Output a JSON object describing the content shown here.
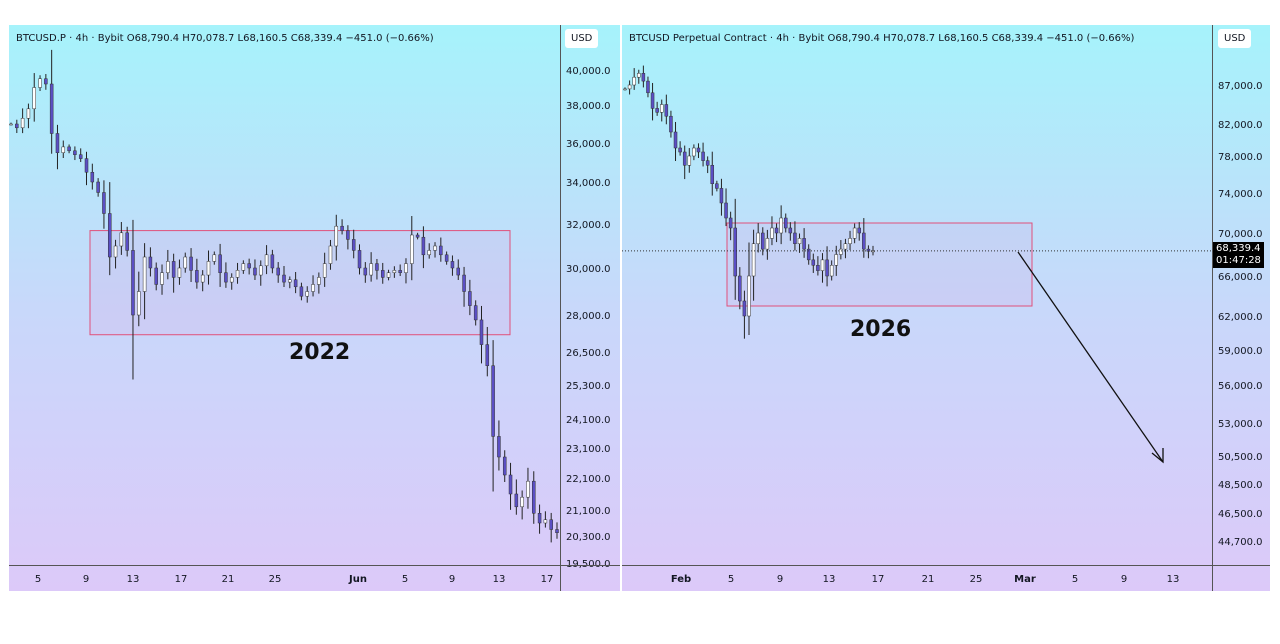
{
  "chart_data": [
    {
      "type": "candlestick",
      "panel": "left",
      "title": "BTCUSD.P · 4h · Bybit  O68,790.4  H70,078.7  L68,160.5  C68,339.4  −451.0 (−0.66%)",
      "currency": "USD",
      "annotation": "2022",
      "y_ticks": [
        40000,
        38000,
        36000,
        34000,
        32000,
        30000,
        28000,
        26500,
        25300,
        24100,
        23100,
        22100,
        21100,
        20300,
        19500
      ],
      "y_tick_labels": [
        "40,000.0",
        "38,000.0",
        "36,000.0",
        "34,000.0",
        "32,000.0",
        "30,000.0",
        "28,000.0",
        "26,500.0",
        "25,300.0",
        "24,100.0",
        "23,100.0",
        "22,100.0",
        "21,100.0",
        "20,300.0",
        "19,500.0"
      ],
      "x_tick_labels": [
        "5",
        "9",
        "13",
        "17",
        "21",
        "25",
        "Jun",
        "5",
        "9",
        "13",
        "17"
      ],
      "range_box": [
        27200,
        31700
      ],
      "closes": [
        37000,
        36800,
        37300,
        37800,
        39000,
        39500,
        39200,
        36500,
        35500,
        35800,
        35600,
        35400,
        35200,
        34500,
        34000,
        33500,
        32500,
        30500,
        31000,
        31600,
        30800,
        28000,
        29000,
        30500,
        30000,
        29300,
        29800,
        30300,
        29600,
        30000,
        30500,
        29900,
        29400,
        29700,
        30300,
        30600,
        29800,
        29400,
        29600,
        29900,
        30200,
        30000,
        29700,
        30100,
        30600,
        30000,
        29700,
        29400,
        29500,
        29200,
        28800,
        29000,
        29300,
        29600,
        30200,
        31000,
        31900,
        31700,
        31300,
        30800,
        30000,
        29700,
        30200,
        29900,
        29600,
        29800,
        29900,
        29800,
        30200,
        31500,
        31400,
        30600,
        30800,
        31000,
        30600,
        30300,
        30000,
        29700,
        29000,
        28400,
        27800,
        26800,
        26000,
        23500,
        22800,
        22200,
        21600,
        21200,
        21500,
        22000,
        21000,
        20700,
        20800,
        20500,
        20400
      ],
      "current_price": "68,339.4"
    },
    {
      "type": "candlestick",
      "panel": "right",
      "title": "BTCUSD Perpetual Contract · 4h · Bybit  O68,790.4  H70,078.7  L68,160.5  C68,339.4  −451.0 (−0.66%)",
      "currency": "USD",
      "annotation": "2026",
      "y_ticks": [
        87000,
        82000,
        78000,
        74000,
        70000,
        66000,
        62000,
        59000,
        56000,
        53000,
        50500,
        48500,
        46500,
        44700
      ],
      "y_tick_labels": [
        "87,000.0",
        "82,000.0",
        "78,000.0",
        "74,000.0",
        "70,000.0",
        "66,000.0",
        "62,000.0",
        "59,000.0",
        "56,000.0",
        "53,000.0",
        "50,500.0",
        "48,500.0",
        "46,500.0",
        "44,700.0"
      ],
      "x_tick_labels": [
        "Feb",
        "5",
        "9",
        "13",
        "17",
        "21",
        "25",
        "Mar",
        "5",
        "9",
        "13"
      ],
      "range_box": [
        63000,
        71000
      ],
      "closes": [
        86500,
        87000,
        88000,
        88500,
        87500,
        86000,
        84000,
        83500,
        84500,
        83000,
        81000,
        79000,
        78500,
        77000,
        78000,
        79000,
        78500,
        77500,
        77000,
        75000,
        74500,
        73000,
        71500,
        70500,
        66000,
        63500,
        62000,
        66000,
        69000,
        70000,
        68500,
        69500,
        70500,
        70000,
        71500,
        70500,
        70000,
        69000,
        69500,
        68500,
        67500,
        67000,
        66500,
        67500,
        66000,
        67000,
        68000,
        68500,
        69000,
        69500,
        70500,
        70000,
        68500,
        68300,
        68339
      ],
      "current_price": "68,339.4",
      "countdown": "01:47:28"
    }
  ],
  "colors": {
    "candle": "#5b4fc4",
    "box": "#e0507a",
    "up": "#5b4fc4"
  }
}
